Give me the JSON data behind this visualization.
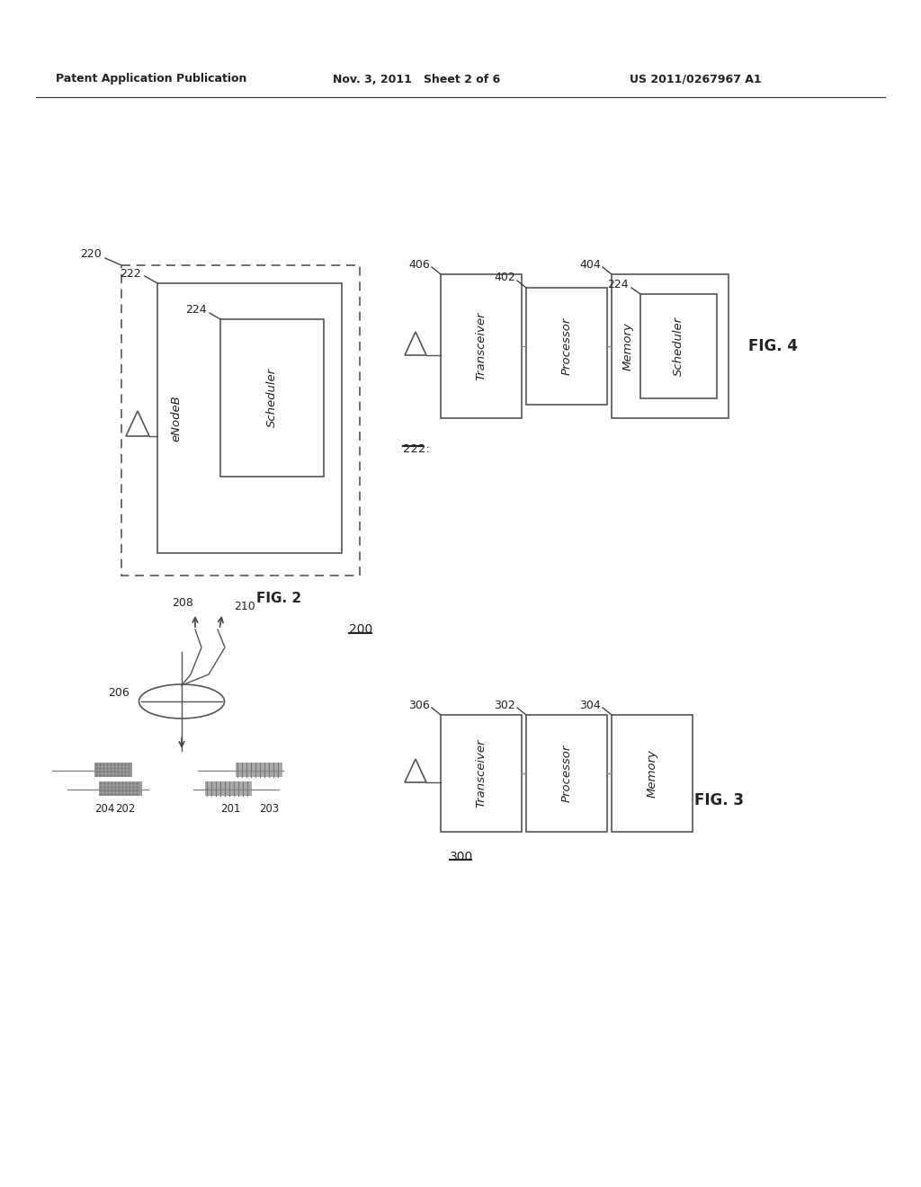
{
  "header_left": "Patent Application Publication",
  "header_mid": "Nov. 3, 2011   Sheet 2 of 6",
  "header_right": "US 2011/0267967 A1",
  "bg_color": "#ffffff",
  "fig2_label": "FIG. 2",
  "fig3_label": "FIG. 3",
  "fig4_label": "FIG. 4",
  "label_200": "200",
  "label_300": "300",
  "label_220": "220",
  "label_222": "222",
  "label_224": "224",
  "label_eNodeB": "eNodeB",
  "label_Scheduler": "Scheduler",
  "label_201": "201",
  "label_202": "202",
  "label_203": "203",
  "label_204": "204",
  "label_206": "206",
  "label_208": "208",
  "label_210": "210",
  "label_302": "302",
  "label_304": "304",
  "label_306": "306",
  "label_Transceiver3": "Transceiver",
  "label_Processor3": "Processor",
  "label_Memory3": "Memory",
  "label_402": "402",
  "label_404": "404",
  "label_406": "406",
  "label_224b": "224",
  "label_222b": "222:",
  "label_Transceiver4": "Transceiver",
  "label_Processor4": "Processor",
  "label_Memory4": "Memory",
  "label_Scheduler4": "Scheduler"
}
